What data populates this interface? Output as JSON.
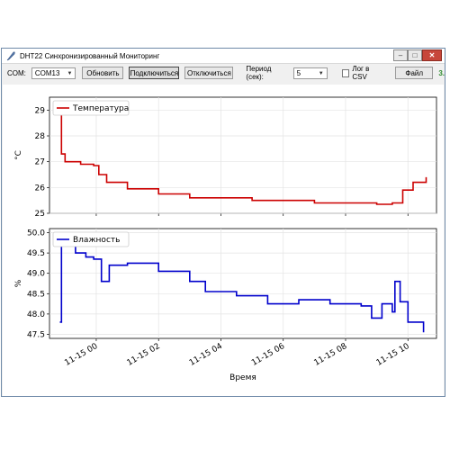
{
  "window": {
    "title": "DHT22 Синхронизированный Мониторинг"
  },
  "toolbar": {
    "com_label": "COM:",
    "com_value": "COM13",
    "refresh_label": "Обновить",
    "connect_label": "Подключиться",
    "disconnect_label": "Отключиться",
    "period_label": "Период (сек):",
    "period_value": "5",
    "log_label": "Лог в CSV",
    "file_label": "Файл",
    "status_text": "3."
  },
  "colors": {
    "temperature": "#cc0000",
    "humidity": "#0000cc",
    "status": "#2e8b2e"
  },
  "chart_data": [
    {
      "type": "line",
      "ylabel": "°C",
      "legend": "Температура",
      "legend_position": "top-left",
      "ylim": [
        25,
        29.5
      ],
      "yticks": [
        "25",
        "26",
        "27",
        "28",
        "29"
      ],
      "grid": true,
      "x": [
        "2023-11-14 22:50",
        "2023-11-14 22:53",
        "2023-11-14 23:00",
        "2023-11-14 23:30",
        "2023-11-14 23:55",
        "2023-11-15 00:05",
        "2023-11-15 00:20",
        "2023-11-15 01:00",
        "2023-11-15 02:00",
        "2023-11-15 03:00",
        "2023-11-15 05:00",
        "2023-11-15 07:00",
        "2023-11-15 09:00",
        "2023-11-15 09:30",
        "2023-11-15 09:50",
        "2023-11-15 10:10",
        "2023-11-15 10:35"
      ],
      "series": [
        {
          "name": "Температура",
          "values": [
            29.3,
            27.3,
            27.0,
            26.9,
            26.85,
            26.5,
            26.2,
            25.95,
            25.75,
            25.6,
            25.5,
            25.4,
            25.35,
            25.4,
            25.9,
            26.2,
            26.4
          ]
        }
      ]
    },
    {
      "type": "line",
      "ylabel": "%",
      "xlabel": "Время",
      "legend": "Влажность",
      "legend_position": "top-left",
      "ylim": [
        47.4,
        50.1
      ],
      "yticks": [
        "47.5",
        "48.0",
        "48.5",
        "49.0",
        "49.5",
        "50.0"
      ],
      "xticks": [
        "11-15 00",
        "11-15 02",
        "11-15 04",
        "11-15 06",
        "11-15 08",
        "11-15 10"
      ],
      "grid": true,
      "x": [
        "2023-11-14 22:50",
        "2023-11-14 22:53",
        "2023-11-14 23:00",
        "2023-11-14 23:20",
        "2023-11-14 23:40",
        "2023-11-14 23:55",
        "2023-11-15 00:10",
        "2023-11-15 00:25",
        "2023-11-15 01:00",
        "2023-11-15 02:00",
        "2023-11-15 03:00",
        "2023-11-15 03:30",
        "2023-11-15 04:30",
        "2023-11-15 05:30",
        "2023-11-15 06:30",
        "2023-11-15 07:30",
        "2023-11-15 08:30",
        "2023-11-15 08:50",
        "2023-11-15 09:10",
        "2023-11-15 09:30",
        "2023-11-15 09:35",
        "2023-11-15 09:45",
        "2023-11-15 10:00",
        "2023-11-15 10:30"
      ],
      "series": [
        {
          "name": "Влажность",
          "values": [
            47.8,
            49.7,
            49.8,
            49.5,
            49.4,
            49.35,
            48.8,
            49.2,
            49.25,
            49.05,
            48.8,
            48.55,
            48.45,
            48.25,
            48.35,
            48.25,
            48.2,
            47.9,
            48.25,
            48.05,
            48.8,
            48.3,
            47.8,
            47.55
          ]
        }
      ]
    }
  ]
}
